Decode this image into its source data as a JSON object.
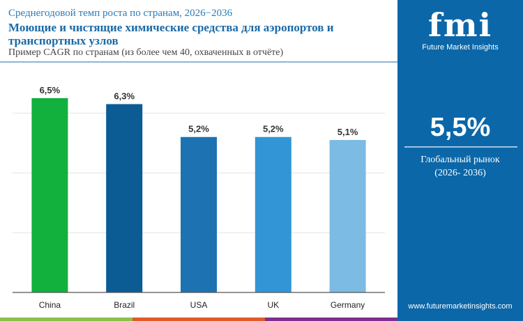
{
  "header": {
    "subtitle": "Среднегодовой темп роста по странам, 2026−2036",
    "title": "Моющие и чистящие химические средства для аэропортов и транспортных узлов",
    "note": "Пример CAGR по странам (из более чем 40, охваченных в отчёте)"
  },
  "panel": {
    "logo_mark": "fmi",
    "logo_name": "Future Market Insights",
    "global_value": "5,5%",
    "global_label": "Глобальный рынок",
    "global_period": "(2026- 2036)",
    "url": "www.futuremarketinsights.com"
  },
  "colors": {
    "panel": "#0b67a8",
    "stripes": [
      "#8cc04a",
      "#e2582a",
      "#7e2f8e"
    ]
  },
  "chart_data": {
    "type": "bar",
    "categories": [
      "China",
      "Brazil",
      "USA",
      "UK",
      "Germany"
    ],
    "values": [
      6.5,
      6.3,
      5.2,
      5.2,
      5.1
    ],
    "labels": [
      "6,5%",
      "6,3%",
      "5,2%",
      "5,2%",
      "5,1%"
    ],
    "colors": [
      "#12b03c",
      "#0b5b94",
      "#1d73b2",
      "#3295d6",
      "#7cbbe3"
    ],
    "ylim": [
      0,
      7.5
    ],
    "grid": true,
    "xlabel": "",
    "ylabel": ""
  }
}
